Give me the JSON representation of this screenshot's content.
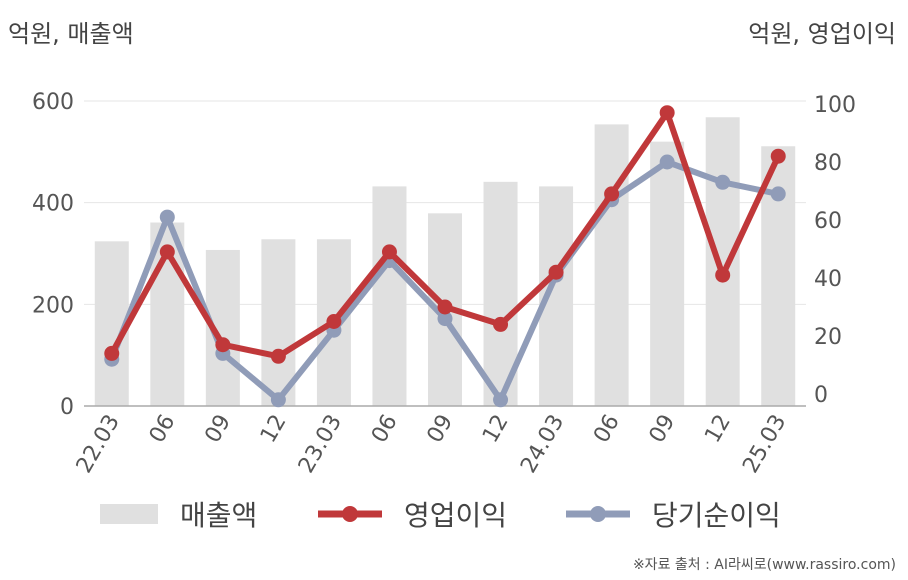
{
  "chart_data": {
    "type": "bar+line",
    "left_unit": "억원, 매출액",
    "right_unit": "억원, 영업이익",
    "categories": [
      "22.03",
      "06",
      "09",
      "12",
      "23.03",
      "06",
      "09",
      "12",
      "24.03",
      "06",
      "09",
      "12",
      "25.03"
    ],
    "y_left_ticks": [
      0,
      200,
      400,
      600
    ],
    "y_left_lim": [
      0,
      600
    ],
    "y_right_ticks": [
      0,
      20,
      40,
      60,
      80,
      100
    ],
    "y_right_lim": [
      -4,
      104
    ],
    "series": [
      {
        "name": "매출액",
        "kind": "bar",
        "axis": "left",
        "color": "#e0e0e0",
        "values": [
          324,
          361,
          307,
          328,
          328,
          432,
          379,
          441,
          432,
          554,
          520,
          568,
          511
        ]
      },
      {
        "name": "영업이익",
        "kind": "line",
        "axis": "right",
        "color": "#c0383a",
        "values": [
          14,
          49,
          17,
          13,
          25,
          49,
          30,
          24,
          42,
          69,
          97,
          41,
          82
        ]
      },
      {
        "name": "당기순이익",
        "kind": "line",
        "axis": "right",
        "color": "#909cb8",
        "values": [
          12,
          61,
          14,
          -2,
          22,
          46,
          26,
          -2,
          41,
          67,
          80,
          73,
          69
        ]
      }
    ],
    "grid": true,
    "legend_position": "bottom"
  },
  "source": "※자료 출처 : AI라씨로(www.rassiro.com)"
}
